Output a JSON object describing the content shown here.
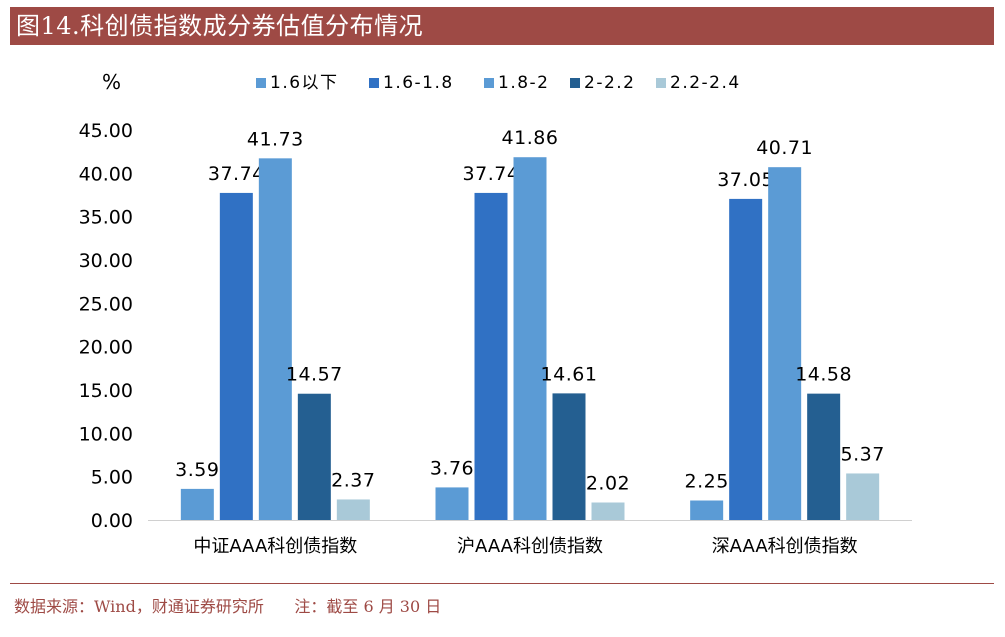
{
  "header": {
    "title": "图14.科创债指数成分券估值分布情况"
  },
  "footer": {
    "source": "数据来源：Wind，财通证券研究所",
    "note": "注：截至 6 月 30 日"
  },
  "chart_data": {
    "type": "bar",
    "unit_label": "%",
    "categories": [
      "中证AAA科创债指数",
      "沪AAA科创债指数",
      "深AAA科创债指数"
    ],
    "series": [
      {
        "name": "1.6以下",
        "color": "#5b9bd5",
        "values": [
          3.59,
          3.76,
          2.25
        ],
        "labels": [
          "3.59",
          "3.76",
          "2.25"
        ]
      },
      {
        "name": "1.6-1.8",
        "color": "#3071c4",
        "values": [
          37.74,
          37.74,
          37.05
        ],
        "labels": [
          "37.74",
          "37.74",
          "37.05"
        ]
      },
      {
        "name": "1.8-2",
        "color": "#5b9bd5",
        "values": [
          41.73,
          41.86,
          40.71
        ],
        "labels": [
          "41.73",
          "41.86",
          "40.71"
        ]
      },
      {
        "name": "2-2.2",
        "color": "#245f91",
        "values": [
          14.57,
          14.61,
          14.58
        ],
        "labels": [
          "14.57",
          "14.61",
          "14.58"
        ]
      },
      {
        "name": "2.2-2.4",
        "color": "#a9c9d8",
        "values": [
          2.37,
          2.02,
          5.37
        ],
        "labels": [
          "2.37",
          "2.02",
          "5.37"
        ]
      }
    ],
    "ylim": [
      0,
      45
    ],
    "yticks": [
      "0.00",
      "5.00",
      "10.00",
      "15.00",
      "20.00",
      "25.00",
      "30.00",
      "35.00",
      "40.00",
      "45.00"
    ],
    "legend_position": "top",
    "grid": false
  }
}
